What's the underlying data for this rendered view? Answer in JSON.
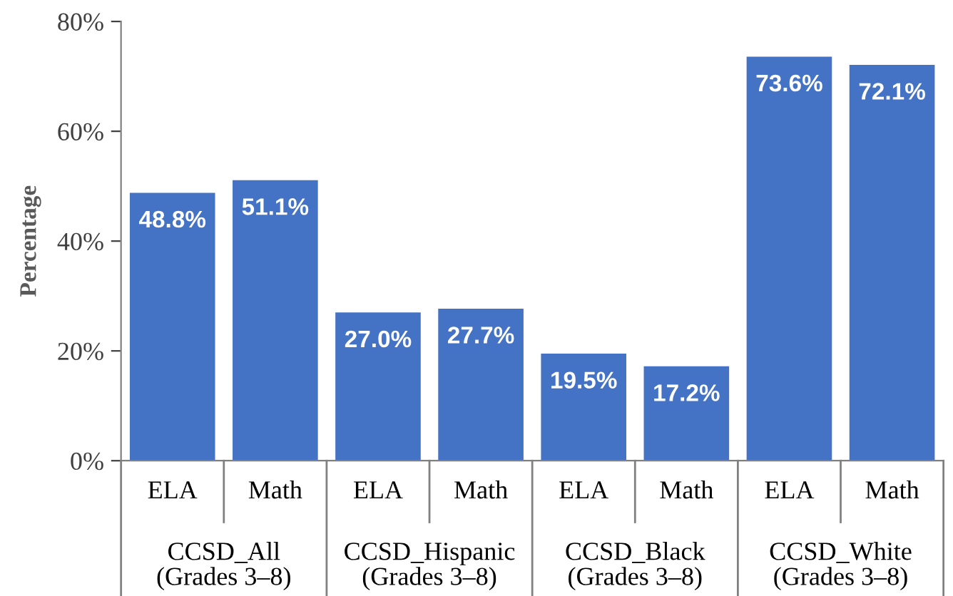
{
  "chart_data": {
    "type": "bar",
    "ylabel": "Percentage",
    "categories": [
      "ELA",
      "Math",
      "ELA",
      "Math",
      "ELA",
      "Math",
      "ELA",
      "Math"
    ],
    "values": [
      48.8,
      51.1,
      27.0,
      27.7,
      19.5,
      17.2,
      73.6,
      72.1
    ],
    "value_labels": [
      "48.8%",
      "51.1%",
      "27.0%",
      "27.7%",
      "19.5%",
      "17.2%",
      "73.6%",
      "72.1%"
    ],
    "color": "#4472c4",
    "annotations": [
      "CCSD_All\n(Grades 3–8)",
      "CCSD_Hispanic\n(Grades 3–8)",
      "CCSD_Black\n(Grades 3–8)",
      "CCSD_White\n(Grades 3–8)"
    ],
    "ylim": [
      0,
      80
    ],
    "yticks": [
      {
        "value": 0,
        "label": "0%"
      },
      {
        "value": 20,
        "label": "20%"
      },
      {
        "value": 40,
        "label": "40%"
      },
      {
        "value": 60,
        "label": "60%"
      },
      {
        "value": 80,
        "label": "80%"
      }
    ],
    "grid": false,
    "legend": false
  }
}
